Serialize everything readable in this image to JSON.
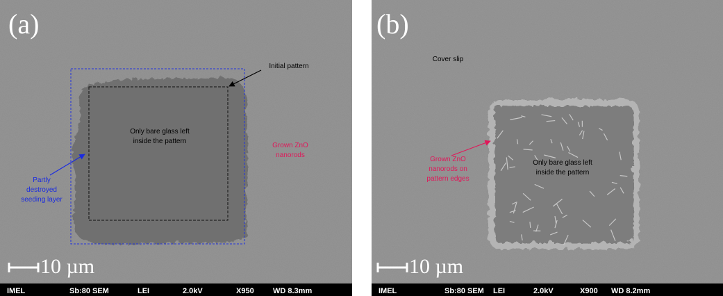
{
  "panels": [
    {
      "label": "(a)",
      "annotations": [
        {
          "lines": [
            "Initial pattern"
          ]
        },
        {
          "lines": [
            "Only bare glass left",
            "inside the pattern"
          ]
        },
        {
          "lines": [
            "Grown ZnO",
            "nanorods"
          ]
        },
        {
          "lines": [
            "Partly",
            "destroyed",
            "seeding layer"
          ]
        }
      ],
      "scale_bar": "10 µm",
      "info_bar": [
        "IMEL",
        "Sb:80 SEM",
        "LEI",
        "2.0kV",
        "X950",
        "WD 8.3mm"
      ]
    },
    {
      "label": "(b)",
      "annotations": [
        {
          "lines": [
            "Cover slip"
          ]
        },
        {
          "lines": [
            "Grown ZnO",
            "nanorods on",
            "pattern edges"
          ]
        },
        {
          "lines": [
            "Only bare glass left",
            "inside the pattern"
          ]
        }
      ],
      "scale_bar": "10 µm",
      "info_bar": [
        "IMEL",
        "Sb:80 SEM",
        "LEI",
        "2.0kV",
        "X900",
        "WD 8.2mm"
      ]
    }
  ]
}
